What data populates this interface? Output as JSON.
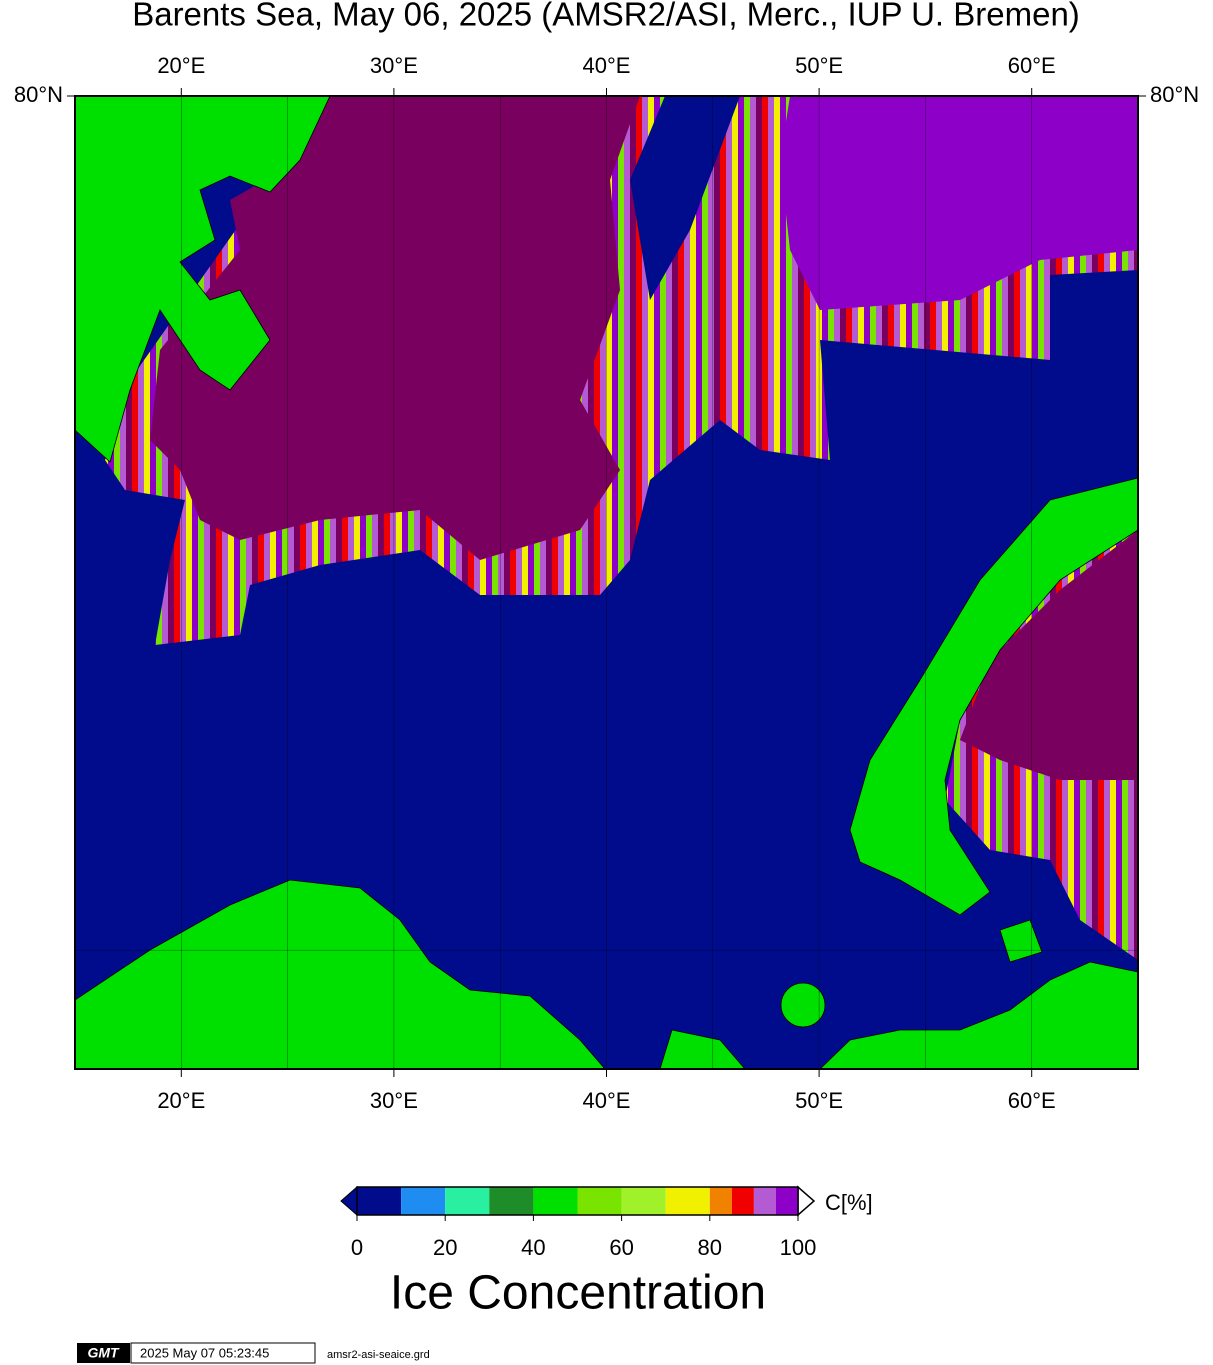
{
  "map": {
    "title": "Barents Sea, May 06, 2025 (AMSR2/ASI, Merc., IUP U. Bremen)",
    "lonlim": [
      15,
      65
    ],
    "latlim": [
      68,
      80
    ],
    "lon_ticks": [
      {
        "value": 20,
        "label": "20°E"
      },
      {
        "value": 30,
        "label": "30°E"
      },
      {
        "value": 40,
        "label": "40°E"
      },
      {
        "value": 50,
        "label": "50°E"
      },
      {
        "value": 60,
        "label": "60°E"
      }
    ],
    "lon_gridlines": [
      20,
      25,
      30,
      35,
      40,
      45,
      50,
      55,
      60
    ],
    "lat_ticks": [
      {
        "value": 80,
        "label": "80°N"
      }
    ],
    "lat_gridlines": [
      70
    ],
    "colorbar": {
      "lim": [
        0,
        100
      ],
      "ticks": [
        0,
        20,
        40,
        60,
        80,
        100
      ],
      "bins": [
        0,
        10,
        20,
        30,
        40,
        50,
        60,
        70,
        80,
        85,
        90,
        95,
        100
      ],
      "colors": [
        "#000c8c",
        "#1e8cf0",
        "#28f0a0",
        "#1e8c28",
        "#00e000",
        "#78e400",
        "#a0f02a",
        "#f0f000",
        "#f08200",
        "#f00000",
        "#b45ad2",
        "#8c00c8"
      ],
      "unit": "C[%]",
      "label": "Ice Concentration"
    },
    "footer": {
      "logo": "GMT",
      "timestamp": "2025 May 07 05:23:45",
      "file": "amsr2-asi-seaice.grd"
    }
  }
}
